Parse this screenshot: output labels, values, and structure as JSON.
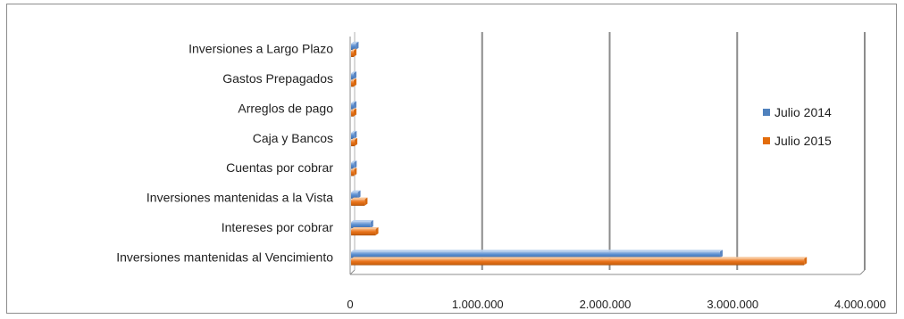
{
  "chart_data": {
    "type": "bar",
    "orientation": "horizontal",
    "style": "3d-clustered",
    "categories": [
      "Inversiones mantenidas al Vencimiento",
      "Intereses por cobrar",
      "Inversiones mantenidas a la Vista",
      "Cuentas por cobrar",
      "Caja y Bancos",
      "Arreglos de pago",
      "Gastos Prepagados",
      "Inversiones a Largo Plazo"
    ],
    "series": [
      {
        "name": "Julio 2014",
        "color": "#4f81bd",
        "values": [
          2900000,
          160000,
          60000,
          30000,
          30000,
          15000,
          15000,
          45000
        ]
      },
      {
        "name": "Julio 2015",
        "color": "#e36c0a",
        "values": [
          3560000,
          200000,
          115000,
          30000,
          35000,
          15000,
          15000,
          15000
        ]
      }
    ],
    "xlim": [
      0,
      4000000
    ],
    "xticks": [
      0,
      1000000,
      2000000,
      3000000,
      4000000
    ],
    "xtick_labels": [
      "0",
      "1.000.000",
      "2.000.000",
      "3.000.000",
      "4.000.000"
    ],
    "title": "",
    "xlabel": "",
    "ylabel": "",
    "grid": "vertical",
    "legend_position": "right"
  }
}
